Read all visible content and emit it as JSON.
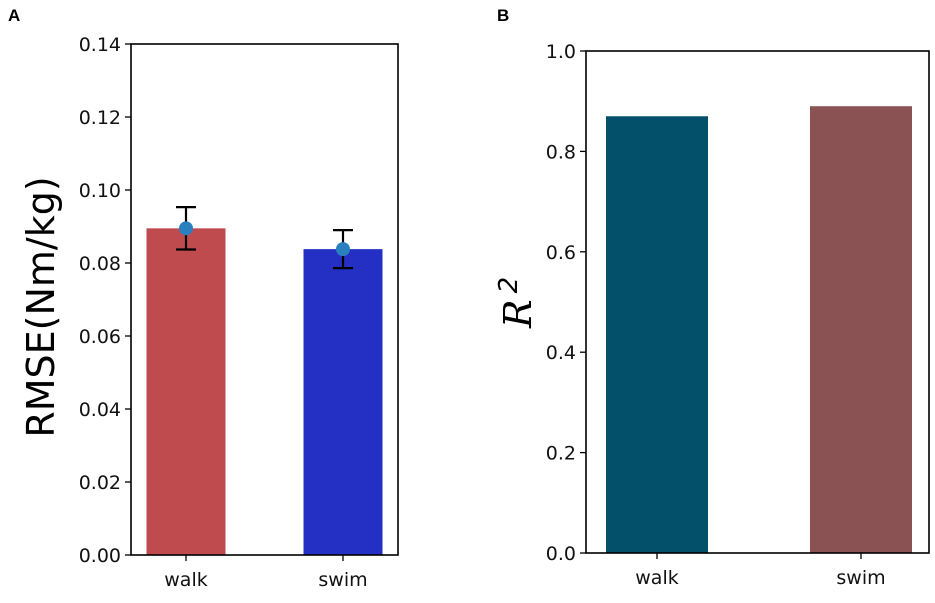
{
  "chart_data": [
    {
      "panel": "A",
      "type": "bar",
      "categories": [
        "walk",
        "swim"
      ],
      "values": [
        0.0895,
        0.0838
      ],
      "errors": [
        0.0058,
        0.0052
      ],
      "colors": [
        "#bf4b4e",
        "#2430c4"
      ],
      "marker_color": "#2a7fbf",
      "title": "",
      "xlabel": "",
      "ylabel": "RMSE(Nm/kg)",
      "ylim": [
        0,
        0.14
      ],
      "yticks": [
        "0.00",
        "0.02",
        "0.04",
        "0.06",
        "0.08",
        "0.10",
        "0.12",
        "0.14"
      ]
    },
    {
      "panel": "B",
      "type": "bar",
      "categories": [
        "walk",
        "swim"
      ],
      "values": [
        0.87,
        0.89
      ],
      "colors": [
        "#02506a",
        "#8a5252"
      ],
      "title": "",
      "xlabel": "",
      "ylabel": "R",
      "ylabel_superscript": "2",
      "ylim": [
        0,
        1.0
      ],
      "yticks": [
        "0.0",
        "0.2",
        "0.4",
        "0.6",
        "0.8",
        "1.0"
      ]
    }
  ]
}
